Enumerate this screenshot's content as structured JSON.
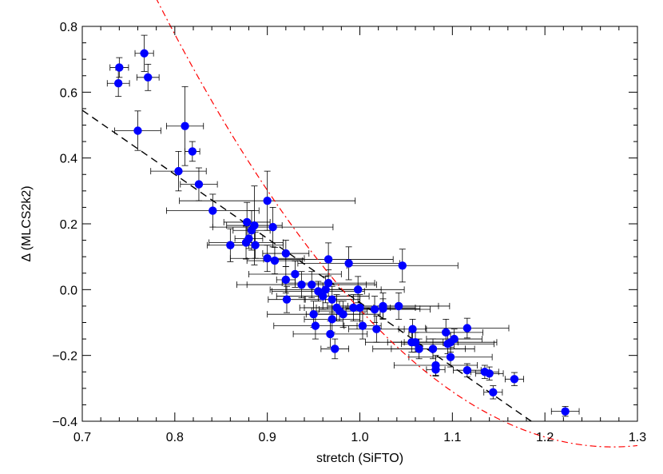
{
  "chart_data": {
    "type": "scatter",
    "xlabel": "stretch (SiFTO)",
    "ylabel": "Δ (MLCS2k2)",
    "xlim": [
      0.7,
      1.3
    ],
    "ylim": [
      -0.4,
      0.8
    ],
    "xticks": [
      "0.7",
      "0.8",
      "0.9",
      "1.0",
      "1.1",
      "1.2",
      "1.3"
    ],
    "yticks": [
      "−0.4",
      "−0.2",
      "0.0",
      "0.2",
      "0.4",
      "0.6",
      "0.8"
    ],
    "grid": false,
    "colors": {
      "points": "#0000ff",
      "errorbars": "#000000",
      "linear_fit": "#000000",
      "quadratic_fit": "#ff0000"
    },
    "points": [
      {
        "x": 0.767,
        "y": 0.718,
        "xerr": 0.01,
        "yerr": 0.055
      },
      {
        "x": 0.74,
        "y": 0.675,
        "xerr": 0.01,
        "yerr": 0.03
      },
      {
        "x": 0.771,
        "y": 0.645,
        "xerr": 0.012,
        "yerr": 0.04
      },
      {
        "x": 0.739,
        "y": 0.627,
        "xerr": 0.012,
        "yerr": 0.04
      },
      {
        "x": 0.76,
        "y": 0.483,
        "xerr": 0.025,
        "yerr": 0.06
      },
      {
        "x": 0.811,
        "y": 0.497,
        "xerr": 0.02,
        "yerr": 0.12
      },
      {
        "x": 0.819,
        "y": 0.42,
        "xerr": 0.008,
        "yerr": 0.03
      },
      {
        "x": 0.804,
        "y": 0.36,
        "xerr": 0.03,
        "yerr": 0.06
      },
      {
        "x": 0.826,
        "y": 0.32,
        "xerr": 0.02,
        "yerr": 0.05
      },
      {
        "x": 0.841,
        "y": 0.24,
        "xerr": 0.05,
        "yerr": 0.05
      },
      {
        "x": 0.86,
        "y": 0.135,
        "xerr": 0.025,
        "yerr": 0.05
      },
      {
        "x": 0.878,
        "y": 0.205,
        "xerr": 0.025,
        "yerr": 0.06
      },
      {
        "x": 0.883,
        "y": 0.18,
        "xerr": 0.02,
        "yerr": 0.06
      },
      {
        "x": 0.886,
        "y": 0.195,
        "xerr": 0.03,
        "yerr": 0.12
      },
      {
        "x": 0.877,
        "y": 0.143,
        "xerr": 0.04,
        "yerr": 0.05
      },
      {
        "x": 0.88,
        "y": 0.155,
        "xerr": 0.015,
        "yerr": 0.03
      },
      {
        "x": 0.887,
        "y": 0.135,
        "xerr": 0.03,
        "yerr": 0.04
      },
      {
        "x": 0.9,
        "y": 0.27,
        "xerr": 0.095,
        "yerr": 0.09
      },
      {
        "x": 0.906,
        "y": 0.19,
        "xerr": 0.065,
        "yerr": 0.06
      },
      {
        "x": 0.9,
        "y": 0.095,
        "xerr": 0.04,
        "yerr": 0.04
      },
      {
        "x": 0.908,
        "y": 0.088,
        "xerr": 0.03,
        "yerr": 0.04
      },
      {
        "x": 0.92,
        "y": 0.11,
        "xerr": 0.025,
        "yerr": 0.04
      },
      {
        "x": 0.92,
        "y": 0.03,
        "xerr": 0.01,
        "yerr": 0.04
      },
      {
        "x": 0.93,
        "y": 0.047,
        "xerr": 0.05,
        "yerr": 0.04
      },
      {
        "x": 0.921,
        "y": -0.03,
        "xerr": 0.02,
        "yerr": 0.04
      },
      {
        "x": 0.937,
        "y": 0.015,
        "xerr": 0.07,
        "yerr": 0.04
      },
      {
        "x": 0.948,
        "y": 0.015,
        "xerr": 0.07,
        "yerr": 0.04
      },
      {
        "x": 0.955,
        "y": -0.005,
        "xerr": 0.05,
        "yerr": 0.03
      },
      {
        "x": 0.96,
        "y": -0.02,
        "xerr": 0.05,
        "yerr": 0.04
      },
      {
        "x": 0.963,
        "y": 0.0,
        "xerr": 0.06,
        "yerr": 0.04
      },
      {
        "x": 0.966,
        "y": 0.092,
        "xerr": 0.07,
        "yerr": 0.05
      },
      {
        "x": 0.966,
        "y": 0.02,
        "xerr": 0.05,
        "yerr": 0.04
      },
      {
        "x": 0.97,
        "y": -0.03,
        "xerr": 0.03,
        "yerr": 0.04
      },
      {
        "x": 0.975,
        "y": -0.055,
        "xerr": 0.04,
        "yerr": 0.04
      },
      {
        "x": 0.978,
        "y": -0.065,
        "xerr": 0.03,
        "yerr": 0.03
      },
      {
        "x": 0.982,
        "y": -0.075,
        "xerr": 0.04,
        "yerr": 0.04
      },
      {
        "x": 0.97,
        "y": -0.09,
        "xerr": 0.03,
        "yerr": 0.04
      },
      {
        "x": 0.95,
        "y": -0.075,
        "xerr": 0.05,
        "yerr": 0.04
      },
      {
        "x": 0.952,
        "y": -0.11,
        "xerr": 0.045,
        "yerr": 0.04
      },
      {
        "x": 0.968,
        "y": -0.135,
        "xerr": 0.04,
        "yerr": 0.04
      },
      {
        "x": 0.973,
        "y": -0.18,
        "xerr": 0.015,
        "yerr": 0.03
      },
      {
        "x": 0.988,
        "y": 0.08,
        "xerr": 0.055,
        "yerr": 0.05
      },
      {
        "x": 0.993,
        "y": -0.055,
        "xerr": 0.04,
        "yerr": 0.04
      },
      {
        "x": 0.998,
        "y": -0.0,
        "xerr": 0.05,
        "yerr": 0.04
      },
      {
        "x": 1.0,
        "y": -0.055,
        "xerr": 0.06,
        "yerr": 0.04
      },
      {
        "x": 1.003,
        "y": -0.11,
        "xerr": 0.02,
        "yerr": 0.04
      },
      {
        "x": 1.016,
        "y": -0.06,
        "xerr": 0.06,
        "yerr": 0.04
      },
      {
        "x": 1.018,
        "y": -0.12,
        "xerr": 0.03,
        "yerr": 0.04
      },
      {
        "x": 1.025,
        "y": -0.05,
        "xerr": 0.06,
        "yerr": 0.04
      },
      {
        "x": 1.025,
        "y": -0.058,
        "xerr": 0.04,
        "yerr": 0.03
      },
      {
        "x": 1.042,
        "y": -0.05,
        "xerr": 0.055,
        "yerr": 0.04
      },
      {
        "x": 1.046,
        "y": 0.073,
        "xerr": 0.06,
        "yerr": 0.05
      },
      {
        "x": 1.057,
        "y": -0.12,
        "xerr": 0.015,
        "yerr": 0.03
      },
      {
        "x": 1.056,
        "y": -0.16,
        "xerr": 0.05,
        "yerr": 0.03
      },
      {
        "x": 1.06,
        "y": -0.16,
        "xerr": 0.03,
        "yerr": 0.03
      },
      {
        "x": 1.064,
        "y": -0.18,
        "xerr": 0.05,
        "yerr": 0.03
      },
      {
        "x": 1.079,
        "y": -0.18,
        "xerr": 0.045,
        "yerr": 0.03
      },
      {
        "x": 1.082,
        "y": -0.23,
        "xerr": 0.045,
        "yerr": 0.03
      },
      {
        "x": 1.082,
        "y": -0.243,
        "xerr": 0.01,
        "yerr": 0.02
      },
      {
        "x": 1.093,
        "y": -0.13,
        "xerr": 0.04,
        "yerr": 0.04
      },
      {
        "x": 1.095,
        "y": -0.165,
        "xerr": 0.05,
        "yerr": 0.03
      },
      {
        "x": 1.098,
        "y": -0.16,
        "xerr": 0.05,
        "yerr": 0.03
      },
      {
        "x": 1.098,
        "y": -0.205,
        "xerr": 0.045,
        "yerr": 0.03
      },
      {
        "x": 1.102,
        "y": -0.15,
        "xerr": 0.03,
        "yerr": 0.03
      },
      {
        "x": 1.116,
        "y": -0.117,
        "xerr": 0.045,
        "yerr": 0.03
      },
      {
        "x": 1.116,
        "y": -0.245,
        "xerr": 0.015,
        "yerr": 0.02
      },
      {
        "x": 1.135,
        "y": -0.25,
        "xerr": 0.015,
        "yerr": 0.02
      },
      {
        "x": 1.14,
        "y": -0.255,
        "xerr": 0.015,
        "yerr": 0.02
      },
      {
        "x": 1.144,
        "y": -0.312,
        "xerr": 0.01,
        "yerr": 0.02
      },
      {
        "x": 1.167,
        "y": -0.272,
        "xerr": 0.01,
        "yerr": 0.02
      },
      {
        "x": 1.222,
        "y": -0.37,
        "xerr": 0.015,
        "yerr": 0.015
      }
    ],
    "linear_fit": {
      "style": "dashed",
      "x": [
        0.7,
        1.1853
      ],
      "y": [
        0.545,
        -0.4
      ]
    },
    "quadratic_fit": {
      "style": "dash-dot",
      "coeffs_c0_c1_c2": [
        8.6,
        -14.26,
        5.6
      ],
      "xrange": [
        0.7,
        1.3
      ]
    }
  }
}
